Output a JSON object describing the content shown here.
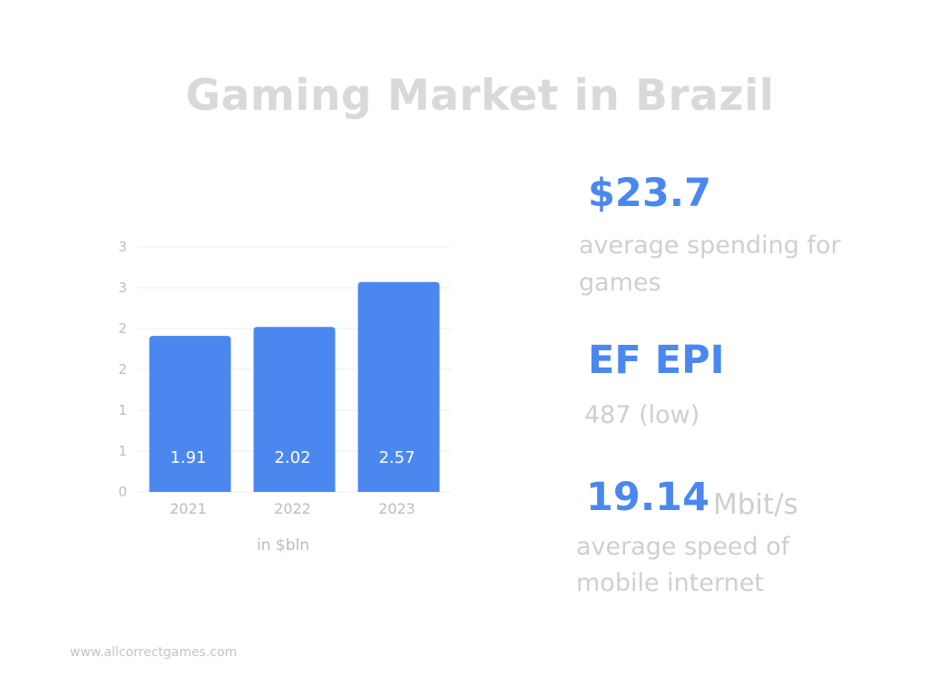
{
  "title": "Gaming Market in Brazil",
  "chart_data": {
    "type": "bar",
    "categories": [
      "2021",
      "2022",
      "2023"
    ],
    "values": [
      1.91,
      2.02,
      2.57
    ],
    "value_labels": [
      "1.91",
      "2.02",
      "2.57"
    ],
    "ytick_labels": [
      "0",
      "1",
      "1",
      "2",
      "2",
      "3",
      "3"
    ],
    "ylim": [
      0,
      3
    ],
    "xlabel": "in $bln",
    "ylabel": "",
    "grid": true,
    "bar_color": "#4a88f0"
  },
  "stats": {
    "spending": {
      "value": "$23.7",
      "line1": "average spending for",
      "line2": "games"
    },
    "efepi": {
      "value": "EF EPI",
      "text": "487 (low)"
    },
    "internet": {
      "value": "19.14",
      "unit": "Mbit/s",
      "line1": "average speed of",
      "line2": "mobile internet"
    }
  },
  "footer": "www.allcorrectgames.com",
  "colors": {
    "accent": "#4a88f0",
    "muted_text": "#cfcfcf",
    "title": "#d9d9d9"
  }
}
